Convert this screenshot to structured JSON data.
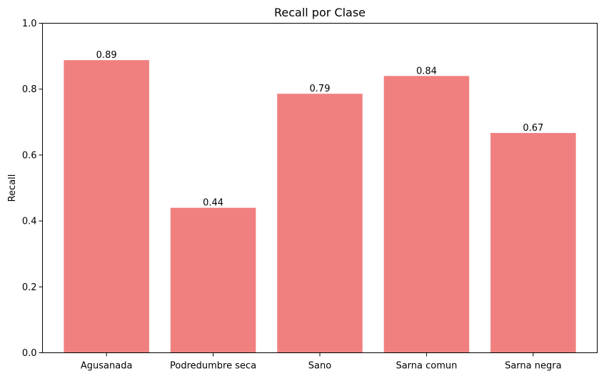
{
  "chart_data": {
    "type": "bar",
    "title": "Recall por Clase",
    "xlabel": "",
    "ylabel": "Recall",
    "categories": [
      "Agusanada",
      "Podredumbre seca",
      "Sano",
      "Sarna comun",
      "Sarna negra"
    ],
    "values": [
      0.888,
      0.44,
      0.786,
      0.84,
      0.667
    ],
    "data_labels": [
      "0.89",
      "0.44",
      "0.79",
      "0.84",
      "0.67"
    ],
    "ylim": [
      0,
      1.0
    ],
    "yticks": [
      0.0,
      0.2,
      0.4,
      0.6,
      0.8,
      1.0
    ],
    "ytick_labels": [
      "0.0",
      "0.2",
      "0.4",
      "0.6",
      "0.8",
      "1.0"
    ],
    "grid": false,
    "bar_color": "#f08080"
  }
}
